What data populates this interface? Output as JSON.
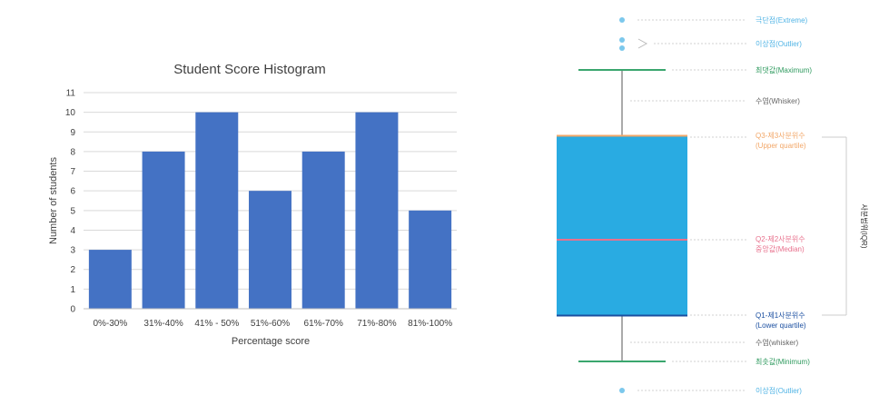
{
  "chart_data": [
    {
      "type": "bar",
      "title": "Student Score Histogram",
      "xlabel": "Percentage score",
      "ylabel": "Number of students",
      "categories": [
        "0%-30%",
        "31%-40%",
        "41% - 50%",
        "51%-60%",
        "61%-70%",
        "71%-80%",
        "81%-100%"
      ],
      "values": [
        3,
        8,
        10,
        6,
        8,
        10,
        5
      ],
      "ylim": [
        0,
        11
      ],
      "yticks": [
        0,
        1,
        2,
        3,
        4,
        5,
        6,
        7,
        8,
        9,
        10,
        11
      ],
      "grid": true,
      "bar_color": "#4472C4"
    },
    {
      "type": "boxplot",
      "annotations": {
        "extreme": "극단점(Extreme)",
        "outlier_top": "이상점(Outlier)",
        "maximum": "최댓값(Maximum)",
        "whisker_top": "수염(Whisker)",
        "q3_line1": "Q3-제3사분위수",
        "q3_line2": "(Upper quartile)",
        "q2_line1": "Q2-제2사분위수",
        "q2_line2": "중앙값(Median)",
        "q1_line1": "Q1-제1사분위수",
        "q1_line2": "(Lower quartile)",
        "whisker_bottom": "수염(whisker)",
        "minimum": "최솟값(Minimum)",
        "outlier_bottom": "이상점(Outlier)",
        "iqr": "사분범위(IQR)"
      },
      "colors": {
        "box": "#29ABE2",
        "whisker_caps": "#3AA66E",
        "q3": "#F2A768",
        "median": "#E8718D",
        "q1": "#1B4FA0",
        "point": "#7CC8EC",
        "guide": "#cccccc"
      }
    }
  ]
}
